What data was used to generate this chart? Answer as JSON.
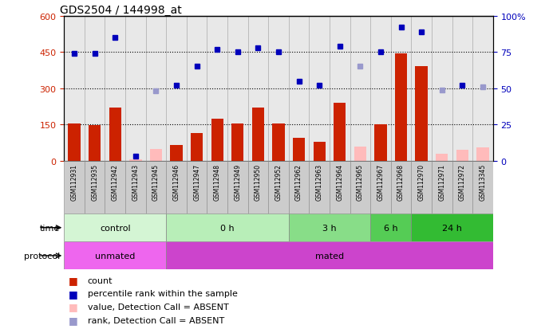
{
  "title": "GDS2504 / 144998_at",
  "samples": [
    "GSM112931",
    "GSM112935",
    "GSM112942",
    "GSM112943",
    "GSM112945",
    "GSM112946",
    "GSM112947",
    "GSM112948",
    "GSM112949",
    "GSM112950",
    "GSM112952",
    "GSM112962",
    "GSM112963",
    "GSM112964",
    "GSM112965",
    "GSM112967",
    "GSM112968",
    "GSM112970",
    "GSM112971",
    "GSM112972",
    "GSM113345"
  ],
  "count_values": [
    153,
    148,
    220,
    5,
    50,
    65,
    115,
    175,
    155,
    220,
    155,
    95,
    80,
    240,
    60,
    150,
    445,
    390,
    30,
    45,
    55
  ],
  "count_absent": [
    false,
    false,
    false,
    true,
    true,
    false,
    false,
    false,
    false,
    false,
    false,
    false,
    false,
    false,
    true,
    false,
    false,
    false,
    true,
    true,
    true
  ],
  "rank_values": [
    74,
    74,
    85,
    3,
    48,
    52,
    65,
    77,
    75,
    78,
    75,
    55,
    52,
    79,
    65,
    75,
    92,
    89,
    49,
    52,
    51
  ],
  "rank_absent": [
    false,
    false,
    false,
    false,
    true,
    false,
    false,
    false,
    false,
    false,
    false,
    false,
    false,
    false,
    true,
    false,
    false,
    false,
    true,
    false,
    true
  ],
  "time_groups": [
    {
      "label": "control",
      "start": 0,
      "end": 5,
      "color": "#d4f5d4"
    },
    {
      "label": "0 h",
      "start": 5,
      "end": 11,
      "color": "#b8eeb8"
    },
    {
      "label": "3 h",
      "start": 11,
      "end": 15,
      "color": "#88dd88"
    },
    {
      "label": "6 h",
      "start": 15,
      "end": 17,
      "color": "#55cc55"
    },
    {
      "label": "24 h",
      "start": 17,
      "end": 21,
      "color": "#33bb33"
    }
  ],
  "protocol_groups": [
    {
      "label": "unmated",
      "start": 0,
      "end": 5,
      "color": "#ee66ee"
    },
    {
      "label": "mated",
      "start": 5,
      "end": 21,
      "color": "#cc44cc"
    }
  ],
  "bar_color": "#cc2200",
  "bar_absent_color": "#ffbbbb",
  "rank_color": "#0000bb",
  "rank_absent_color": "#9999cc",
  "ylim_left": [
    0,
    600
  ],
  "ylim_right": [
    0,
    100
  ],
  "yticks_left": [
    0,
    150,
    300,
    450,
    600
  ],
  "yticks_right": [
    0,
    25,
    50,
    75,
    100
  ],
  "background_color": "#ffffff"
}
